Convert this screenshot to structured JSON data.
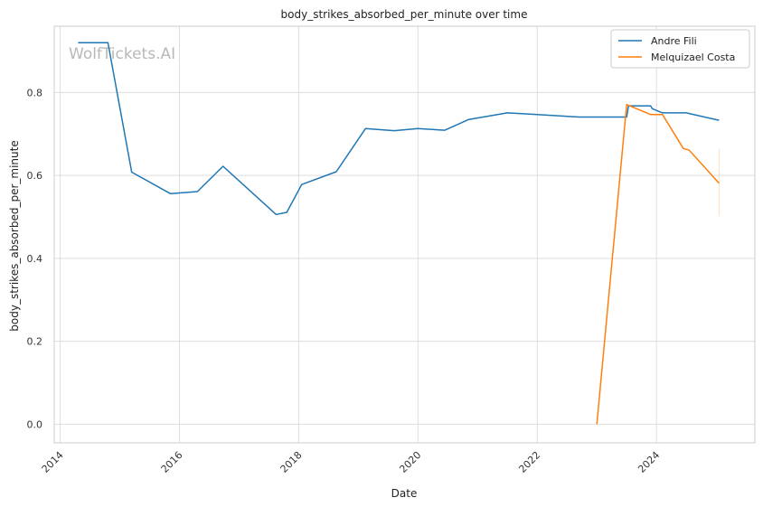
{
  "chart_data": {
    "type": "line",
    "title": "body_strikes_absorbed_per_minute over time",
    "xlabel": "Date",
    "ylabel": "body_strikes_absorbed_per_minute",
    "xlim": [
      2013.9,
      2025.65
    ],
    "ylim": [
      -0.045,
      0.96
    ],
    "x_ticks": [
      2014,
      2016,
      2018,
      2020,
      2022,
      2024
    ],
    "x_tick_labels": [
      "2014",
      "2016",
      "2018",
      "2020",
      "2022",
      "2024"
    ],
    "y_ticks": [
      0.0,
      0.2,
      0.4,
      0.6,
      0.8
    ],
    "y_tick_labels": [
      "0.0",
      "0.2",
      "0.4",
      "0.6",
      "0.8"
    ],
    "grid": true,
    "legend_position": "top-right",
    "watermark": "WolfTickets.AI",
    "series": [
      {
        "name": "Andre Fili",
        "color": "#1f77b4",
        "points": [
          [
            2014.3,
            0.92
          ],
          [
            2014.8,
            0.92
          ],
          [
            2015.2,
            0.608
          ],
          [
            2015.85,
            0.556
          ],
          [
            2016.3,
            0.561
          ],
          [
            2016.73,
            0.622
          ],
          [
            2017.62,
            0.506
          ],
          [
            2017.8,
            0.511
          ],
          [
            2018.05,
            0.578
          ],
          [
            2018.63,
            0.609
          ],
          [
            2019.12,
            0.713
          ],
          [
            2019.6,
            0.708
          ],
          [
            2020.0,
            0.713
          ],
          [
            2020.45,
            0.709
          ],
          [
            2020.85,
            0.735
          ],
          [
            2021.5,
            0.751
          ],
          [
            2022.0,
            0.747
          ],
          [
            2022.7,
            0.741
          ],
          [
            2023.5,
            0.741
          ],
          [
            2023.53,
            0.768
          ],
          [
            2023.9,
            0.768
          ],
          [
            2023.93,
            0.761
          ],
          [
            2024.1,
            0.751
          ],
          [
            2024.5,
            0.751
          ],
          [
            2025.05,
            0.733
          ]
        ]
      },
      {
        "name": "Melquizael Costa",
        "color": "#ff7f0e",
        "points": [
          [
            2023.0,
            0.0
          ],
          [
            2023.5,
            0.771
          ],
          [
            2023.9,
            0.747
          ],
          [
            2024.1,
            0.747
          ],
          [
            2024.45,
            0.665
          ],
          [
            2024.55,
            0.661
          ],
          [
            2025.05,
            0.581
          ]
        ]
      }
    ],
    "error_bar": {
      "x": 2025.05,
      "low": 0.502,
      "high": 0.664,
      "color": "#ff7f0e"
    }
  }
}
